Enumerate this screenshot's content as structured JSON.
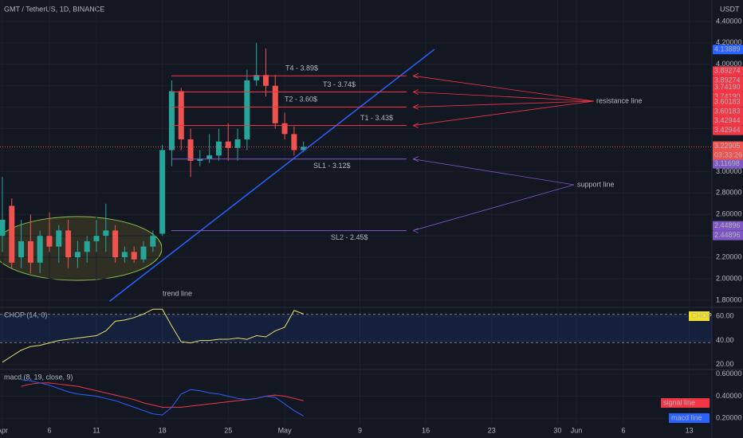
{
  "header": {
    "symbol": "GMT / TetherUS, 1D, BINANCE",
    "currency": "USDT"
  },
  "chart_data": [
    {
      "type": "candlestick",
      "up_color": "#26a69a",
      "down_color": "#ef5350",
      "x": [
        1,
        2,
        3,
        4,
        5,
        6,
        7,
        8,
        9,
        10,
        11,
        12,
        13,
        14,
        15,
        16,
        17,
        18,
        19,
        20,
        21,
        22,
        23,
        24,
        25,
        26,
        27,
        28,
        29,
        30,
        31,
        32,
        33
      ],
      "open": [
        2.4,
        2.68,
        2.2,
        2.35,
        2.15,
        2.4,
        2.3,
        2.45,
        2.2,
        2.25,
        2.35,
        2.4,
        2.45,
        2.2,
        2.25,
        2.18,
        2.3,
        2.42,
        3.2,
        3.75,
        3.3,
        3.1,
        3.12,
        3.15,
        3.28,
        3.22,
        3.3,
        3.85,
        3.9,
        3.8,
        3.45,
        3.35,
        3.2
      ],
      "high": [
        2.95,
        2.75,
        2.55,
        2.6,
        2.45,
        2.62,
        2.5,
        2.55,
        2.35,
        2.4,
        2.55,
        2.7,
        2.5,
        2.3,
        2.3,
        2.35,
        2.45,
        3.25,
        3.85,
        3.78,
        3.4,
        3.2,
        3.35,
        3.4,
        3.45,
        3.4,
        3.95,
        4.2,
        4.15,
        3.9,
        3.55,
        3.42,
        3.28
      ],
      "low": [
        2.25,
        2.1,
        2.1,
        2.05,
        2.05,
        2.25,
        2.15,
        2.1,
        2.1,
        2.15,
        2.25,
        2.25,
        2.15,
        2.15,
        2.15,
        2.15,
        2.25,
        2.4,
        3.05,
        3.2,
        2.95,
        3.05,
        3.08,
        3.1,
        3.1,
        3.1,
        3.2,
        3.8,
        3.7,
        3.4,
        3.3,
        3.15,
        3.18
      ],
      "close": [
        2.55,
        2.15,
        2.35,
        2.15,
        2.4,
        2.3,
        2.45,
        2.2,
        2.25,
        2.35,
        2.4,
        2.45,
        2.2,
        2.25,
        2.18,
        2.3,
        2.4,
        3.2,
        3.75,
        3.3,
        3.1,
        3.12,
        3.15,
        3.28,
        3.22,
        3.3,
        3.85,
        3.9,
        3.8,
        3.45,
        3.35,
        3.2,
        3.23
      ],
      "xlim": [
        0.75,
        76.4
      ],
      "xticks": [
        {
          "value": 1,
          "label": "Apr"
        },
        6,
        11,
        18,
        25,
        {
          "value": 31,
          "label": "May"
        },
        {
          "value": 39,
          "label": "9"
        },
        {
          "value": 46,
          "label": "16"
        },
        {
          "value": 53,
          "label": "23"
        },
        {
          "value": 60,
          "label": "30"
        },
        {
          "value": 62,
          "label": "Jun"
        },
        {
          "value": 67,
          "label": "6"
        },
        {
          "value": 74,
          "label": "13"
        }
      ],
      "ylim": [
        1.74,
        4.6
      ],
      "yticks": [
        {
          "value": 4.4,
          "label": "4.40000"
        },
        {
          "value": 4.2,
          "label": "4.20000"
        },
        {
          "value": 4.0,
          "label": "4.00000"
        },
        {
          "value": 3.8,
          "label": "3.80000"
        },
        {
          "value": 3.6,
          "label": "3.60000"
        },
        {
          "value": 3.4,
          "label": "3.40000"
        },
        {
          "value": 3.2,
          "label": "3.20000"
        },
        {
          "value": 3.0,
          "label": "3.00000"
        },
        {
          "value": 2.8,
          "label": "2.80000"
        },
        {
          "value": 2.6,
          "label": "2.60000"
        },
        {
          "value": 2.4,
          "label": "2.40000"
        },
        {
          "value": 2.2,
          "label": "2.20000"
        },
        {
          "value": 2.0,
          "label": "2.00000"
        },
        {
          "value": 1.8,
          "label": "1.80000"
        }
      ],
      "last_price": 3.22905,
      "countdown": "03:33:26",
      "resistance": {
        "label": "resistance line",
        "color": "#f23645",
        "levels": [
          {
            "name": "T4 - 3.89$",
            "price": 3.89274
          },
          {
            "name": "T3 - 3.74$",
            "price": {
              "value": 3.7419,
              "label": "3.74190"
            }
          },
          {
            "name": "T2 - 3.60$",
            "price": 3.60183
          },
          {
            "name": "T1 - 3.43$",
            "price": 3.42944
          }
        ]
      },
      "support": {
        "label": "support line",
        "color": "#7e57c2",
        "levels": [
          {
            "name": "SL1 - 3.12$",
            "price": 3.11698
          },
          {
            "name": "SL2 - 2.45$",
            "price": 2.44896
          }
        ]
      },
      "trend_line": {
        "label": "trend line",
        "color": "#2962ff",
        "x": [
          12.4,
          46.9
        ],
        "values": [
          1.79,
          4.13889
        ]
      }
    },
    {
      "type": "line",
      "title": "CHOP (14, 0)",
      "series": [
        {
          "name": "CHOP",
          "color": "#e8e26a",
          "values": [
            22,
            27,
            32,
            35,
            36,
            38,
            40,
            41,
            42,
            43,
            44,
            48,
            56,
            57,
            59,
            62,
            66,
            66,
            52,
            39,
            38,
            40,
            40,
            41,
            41,
            42,
            41,
            44,
            43,
            48,
            51,
            65,
            62
          ]
        }
      ],
      "band": [
        38.2,
        61.8
      ],
      "ylim": [
        16.6,
        66.8
      ],
      "yticks": [
        {
          "value": 60,
          "label": "60.00"
        },
        {
          "value": 40,
          "label": "40.00"
        },
        {
          "value": 20,
          "label": "20.00"
        }
      ]
    },
    {
      "type": "line",
      "title": "macd (8, 19, close, 9)",
      "series": [
        {
          "name": "signal line",
          "color": "#f23645",
          "values": [
            null,
            null,
            0.49,
            0.51,
            0.52,
            0.52,
            0.51,
            0.5,
            0.49,
            0.47,
            0.45,
            0.43,
            0.41,
            0.39,
            0.37,
            0.34,
            0.32,
            0.3,
            0.3,
            0.3,
            0.31,
            0.32,
            0.33,
            0.34,
            0.35,
            0.36,
            0.37,
            0.38,
            0.4,
            0.41,
            0.4,
            0.38,
            0.36
          ]
        },
        {
          "name": "macd line",
          "color": "#2962ff",
          "values": [
            null,
            null,
            0.55,
            0.54,
            0.52,
            0.5,
            0.47,
            0.44,
            0.42,
            0.41,
            0.4,
            0.38,
            0.36,
            0.33,
            0.3,
            0.27,
            0.24,
            0.23,
            0.3,
            0.42,
            0.46,
            0.45,
            0.43,
            0.42,
            0.4,
            0.38,
            0.37,
            0.38,
            0.4,
            0.39,
            0.33,
            0.27,
            0.22
          ]
        }
      ],
      "ylim": [
        0.144,
        0.635
      ],
      "yticks": [
        {
          "value": 0.6,
          "label": "0.60000"
        },
        {
          "value": 0.4,
          "label": "0.40000"
        },
        {
          "value": 0.2,
          "label": "0.20000"
        }
      ]
    }
  ]
}
